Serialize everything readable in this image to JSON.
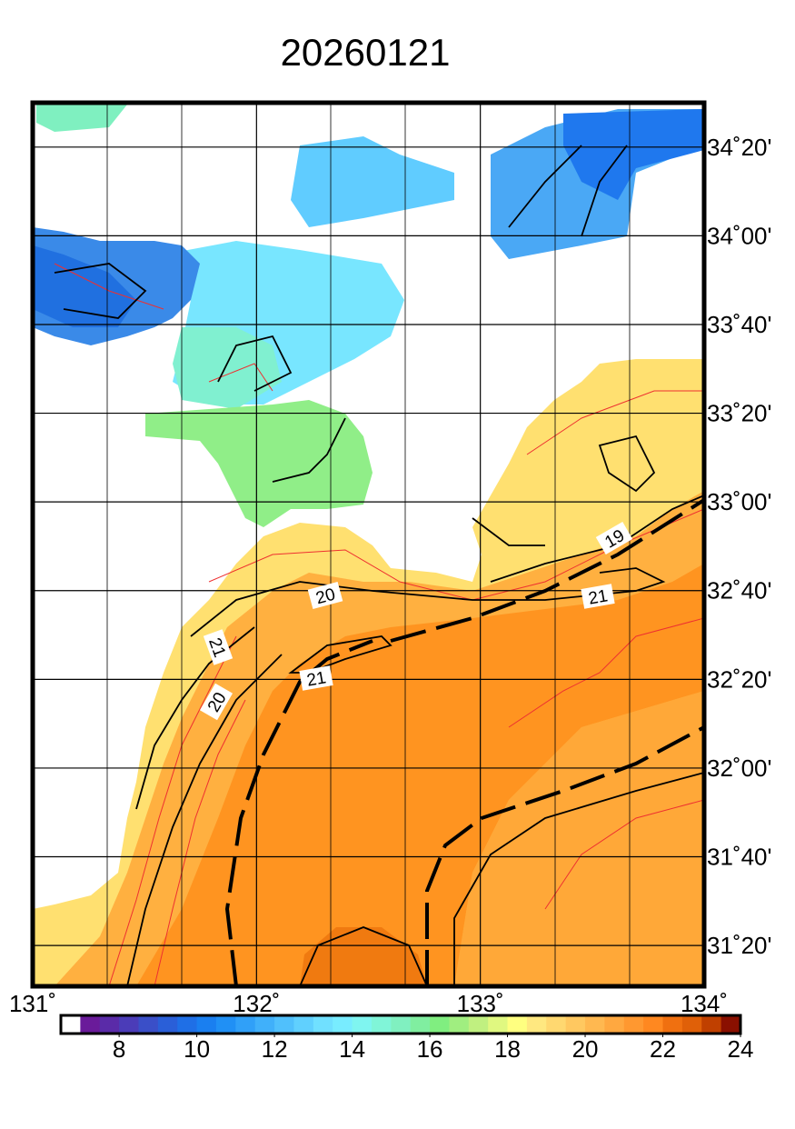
{
  "title": "20260121",
  "xlim": [
    131,
    134
  ],
  "ylim": [
    31.18,
    34.5
  ],
  "lon_ticks": [
    {
      "value": 131,
      "label": "131˚"
    },
    {
      "value": 132,
      "label": "132˚"
    },
    {
      "value": 133,
      "label": "133˚"
    },
    {
      "value": 134,
      "label": "134˚"
    }
  ],
  "lat_ticks": [
    {
      "value": 34.3333,
      "label": "34˚20'"
    },
    {
      "value": 34,
      "label": "34˚00'"
    },
    {
      "value": 33.6667,
      "label": "33˚40'"
    },
    {
      "value": 33.3333,
      "label": "33˚20'"
    },
    {
      "value": 33,
      "label": "33˚00'"
    },
    {
      "value": 32.6667,
      "label": "32˚40'"
    },
    {
      "value": 32.3333,
      "label": "32˚20'"
    },
    {
      "value": 32,
      "label": "32˚00'"
    },
    {
      "value": 31.6667,
      "label": "31˚40'"
    },
    {
      "value": 31.3333,
      "label": "31˚20'"
    }
  ],
  "colorbar": {
    "clim": [
      6.5,
      24
    ],
    "ticks": [
      8,
      10,
      12,
      14,
      16,
      18,
      20,
      22,
      24
    ],
    "colors": [
      "#ffffff",
      "#6a1b9a",
      "#5a2ba8",
      "#4b3cb8",
      "#3a4fc8",
      "#2a5fd8",
      "#1f6fe6",
      "#1a7ff0",
      "#2090f5",
      "#30a0f8",
      "#40b0fa",
      "#50c0fc",
      "#60d0fe",
      "#70e0ff",
      "#78ecff",
      "#7ff5f0",
      "#80f5d8",
      "#80f0c0",
      "#80eea0",
      "#80ee80",
      "#a0ee80",
      "#c0f080",
      "#e0f880",
      "#ffff80",
      "#ffe880",
      "#ffd870",
      "#ffc860",
      "#ffb850",
      "#ffa840",
      "#ff9830",
      "#ff8820",
      "#f07010",
      "#e06008",
      "#c04000",
      "#8a1000"
    ]
  },
  "contour_labels": [
    "19",
    "21",
    "20",
    "21",
    "21",
    "20"
  ]
}
